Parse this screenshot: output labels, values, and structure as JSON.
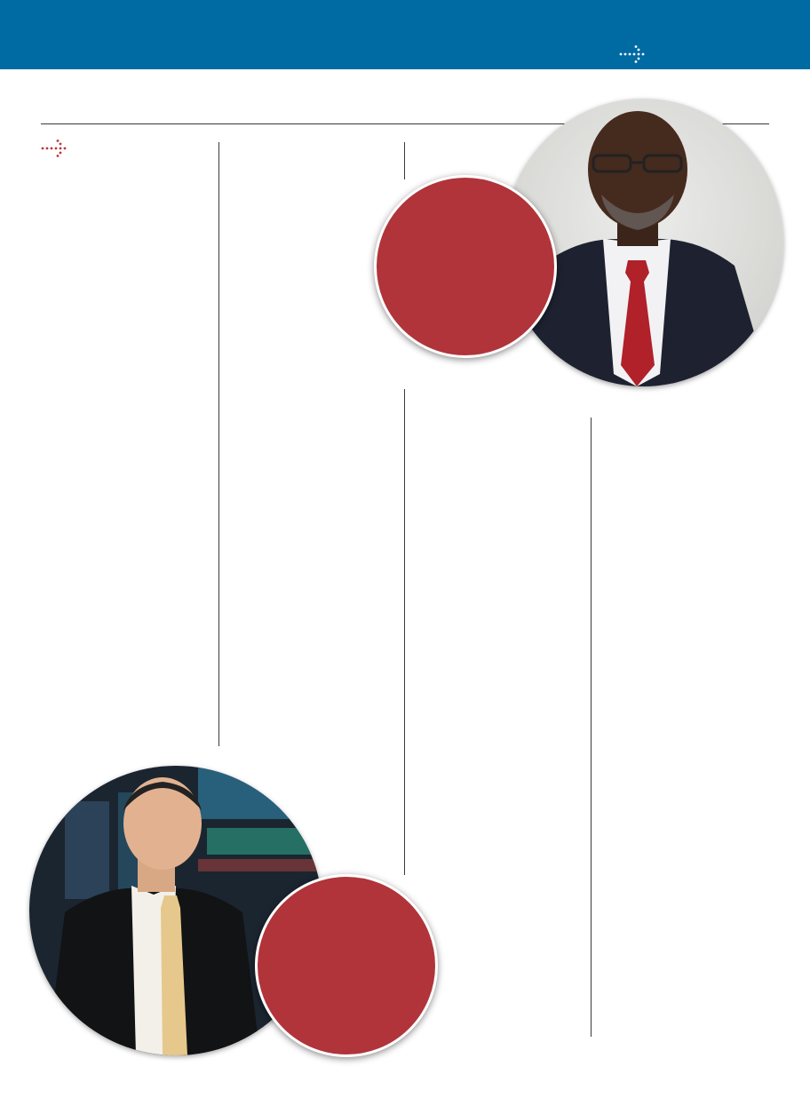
{
  "theme": {
    "banner_color": "#006ba3",
    "accent_color": "#b0343a",
    "rule_color": "#3a3a3a"
  },
  "header": {
    "arrow_icon": "dotted-arrow-right-icon"
  },
  "section": {
    "marker_icon": "dotted-arrow-right-icon"
  },
  "photos": [
    {
      "subject": "man-in-dark-suit-red-tie-portrait"
    },
    {
      "subject": "man-in-dark-suit-trading-floor-portrait"
    }
  ]
}
